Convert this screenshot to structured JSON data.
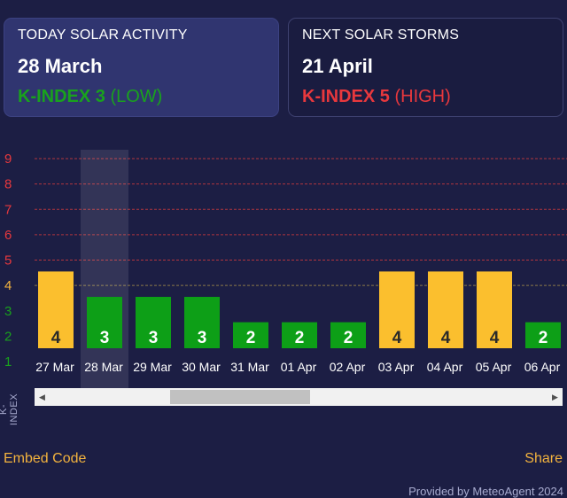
{
  "today": {
    "label": "TODAY SOLAR ACTIVITY",
    "date": "28 March",
    "k_strong": "K-INDEX 3",
    "k_level": "(LOW)",
    "color": "#19a21d"
  },
  "next": {
    "label": "NEXT SOLAR STORMS",
    "date": "21 April",
    "k_strong": "K-INDEX 5",
    "k_level": "(HIGH)",
    "color": "#e8383d"
  },
  "chart_data": {
    "type": "bar",
    "categories": [
      "27 Mar",
      "28 Mar",
      "29 Mar",
      "30 Mar",
      "31 Mar",
      "01 Apr",
      "02 Apr",
      "03 Apr",
      "04 Apr",
      "05 Apr",
      "06 Apr"
    ],
    "values": [
      4,
      3,
      3,
      3,
      2,
      2,
      2,
      4,
      4,
      4,
      2
    ],
    "highlighted": "28 Mar",
    "ylabel": "K-INDEX",
    "ylim": [
      1,
      9
    ],
    "yticks": [
      1,
      2,
      3,
      4,
      5,
      6,
      7,
      8,
      9
    ],
    "grid": true,
    "color_scale": {
      "1": "#19a21d",
      "2": "#19a21d",
      "3": "#19a21d",
      "4": "#f3b33e",
      "5": "#e8383d",
      "6": "#e8383d",
      "7": "#e8383d",
      "8": "#e8383d",
      "9": "#e8383d"
    },
    "bar_colors": {
      "low": "#0d9f17",
      "moderate": "#fbbf2e"
    }
  },
  "footer": {
    "embed": "Embed Code",
    "share": "Share",
    "provided": "Provided by MeteoAgent 2024"
  },
  "icons": {
    "scroll_left": "triangle-left",
    "scroll_right": "triangle-right"
  }
}
